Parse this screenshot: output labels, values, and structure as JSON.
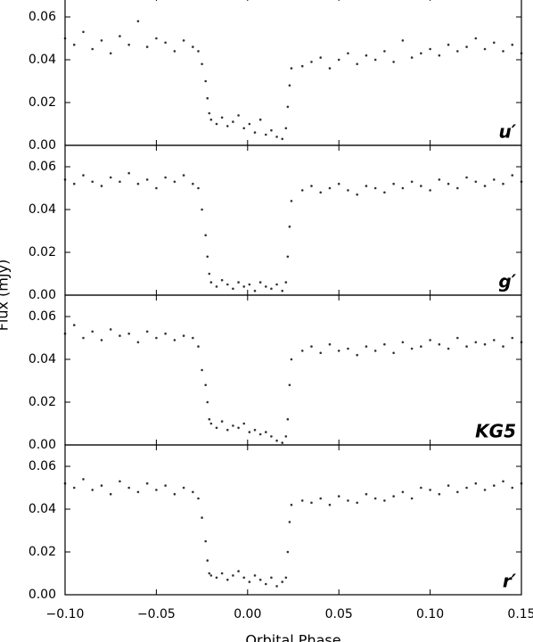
{
  "chart_data": [
    {
      "type": "scatter",
      "label": "u′",
      "color": "#333333",
      "xlim": [
        -0.1,
        0.15
      ],
      "ylim": [
        0,
        0.07
      ],
      "xticks": [
        -0.1,
        -0.05,
        0,
        0.05,
        0.1,
        0.15
      ],
      "yticks": [
        {
          "value": 0,
          "label": "0.00"
        },
        {
          "value": 0.02,
          "label": "0.02"
        },
        {
          "value": 0.04,
          "label": "0.04"
        },
        {
          "value": 0.06,
          "label": "0.06"
        }
      ],
      "x": [
        -0.1,
        -0.095,
        -0.09,
        -0.085,
        -0.08,
        -0.075,
        -0.07,
        -0.065,
        -0.06,
        -0.055,
        -0.05,
        -0.045,
        -0.04,
        -0.035,
        -0.03,
        -0.027,
        -0.025,
        -0.023,
        -0.022,
        -0.021,
        -0.02,
        -0.017,
        -0.014,
        -0.011,
        -0.008,
        -0.005,
        -0.002,
        0.001,
        0.004,
        0.007,
        0.01,
        0.013,
        0.016,
        0.019,
        0.021,
        0.022,
        0.023,
        0.024,
        0.03,
        0.035,
        0.04,
        0.045,
        0.05,
        0.055,
        0.06,
        0.065,
        0.07,
        0.075,
        0.08,
        0.085,
        0.09,
        0.095,
        0.1,
        0.105,
        0.11,
        0.115,
        0.12,
        0.125,
        0.13,
        0.135,
        0.14,
        0.145,
        0.15
      ],
      "values": [
        0.05,
        0.047,
        0.053,
        0.045,
        0.049,
        0.043,
        0.051,
        0.047,
        0.058,
        0.046,
        0.05,
        0.048,
        0.044,
        0.049,
        0.046,
        0.044,
        0.038,
        0.03,
        0.022,
        0.015,
        0.012,
        0.01,
        0.013,
        0.009,
        0.011,
        0.014,
        0.008,
        0.01,
        0.006,
        0.012,
        0.005,
        0.007,
        0.004,
        0.003,
        0.008,
        0.018,
        0.028,
        0.036,
        0.037,
        0.039,
        0.041,
        0.036,
        0.04,
        0.043,
        0.038,
        0.042,
        0.04,
        0.044,
        0.039,
        0.049,
        0.041,
        0.043,
        0.045,
        0.042,
        0.047,
        0.044,
        0.046,
        0.05,
        0.045,
        0.048,
        0.044,
        0.047,
        0.043
      ]
    },
    {
      "type": "scatter",
      "label": "g′",
      "color": "#333333",
      "xlim": [
        -0.1,
        0.15
      ],
      "ylim": [
        0,
        0.07
      ],
      "xticks": [
        -0.1,
        -0.05,
        0,
        0.05,
        0.1,
        0.15
      ],
      "yticks": [
        {
          "value": 0,
          "label": "0.00"
        },
        {
          "value": 0.02,
          "label": "0.02"
        },
        {
          "value": 0.04,
          "label": "0.04"
        },
        {
          "value": 0.06,
          "label": "0.06"
        }
      ],
      "x": [
        -0.1,
        -0.095,
        -0.09,
        -0.085,
        -0.08,
        -0.075,
        -0.07,
        -0.065,
        -0.06,
        -0.055,
        -0.05,
        -0.045,
        -0.04,
        -0.035,
        -0.03,
        -0.027,
        -0.025,
        -0.023,
        -0.022,
        -0.021,
        -0.02,
        -0.017,
        -0.014,
        -0.011,
        -0.008,
        -0.005,
        -0.002,
        0.001,
        0.004,
        0.007,
        0.01,
        0.013,
        0.016,
        0.019,
        0.021,
        0.022,
        0.023,
        0.024,
        0.03,
        0.035,
        0.04,
        0.045,
        0.05,
        0.055,
        0.06,
        0.065,
        0.07,
        0.075,
        0.08,
        0.085,
        0.09,
        0.095,
        0.1,
        0.105,
        0.11,
        0.115,
        0.12,
        0.125,
        0.13,
        0.135,
        0.14,
        0.145,
        0.15
      ],
      "values": [
        0.054,
        0.052,
        0.056,
        0.053,
        0.051,
        0.055,
        0.053,
        0.057,
        0.052,
        0.054,
        0.05,
        0.055,
        0.053,
        0.056,
        0.052,
        0.05,
        0.04,
        0.028,
        0.018,
        0.01,
        0.006,
        0.004,
        0.007,
        0.005,
        0.003,
        0.006,
        0.004,
        0.005,
        0.002,
        0.006,
        0.004,
        0.003,
        0.005,
        0.002,
        0.006,
        0.018,
        0.032,
        0.044,
        0.049,
        0.051,
        0.048,
        0.05,
        0.052,
        0.049,
        0.047,
        0.051,
        0.05,
        0.048,
        0.052,
        0.05,
        0.053,
        0.051,
        0.049,
        0.054,
        0.052,
        0.05,
        0.055,
        0.053,
        0.051,
        0.054,
        0.052,
        0.056,
        0.053
      ]
    },
    {
      "type": "scatter",
      "label": "KG5",
      "color": "#333333",
      "xlim": [
        -0.1,
        0.15
      ],
      "ylim": [
        0,
        0.07
      ],
      "xticks": [
        -0.1,
        -0.05,
        0,
        0.05,
        0.1,
        0.15
      ],
      "yticks": [
        {
          "value": 0,
          "label": "0.00"
        },
        {
          "value": 0.02,
          "label": "0.02"
        },
        {
          "value": 0.04,
          "label": "0.04"
        },
        {
          "value": 0.06,
          "label": "0.06"
        }
      ],
      "x": [
        -0.1,
        -0.095,
        -0.09,
        -0.085,
        -0.08,
        -0.075,
        -0.07,
        -0.065,
        -0.06,
        -0.055,
        -0.05,
        -0.045,
        -0.04,
        -0.035,
        -0.03,
        -0.027,
        -0.025,
        -0.023,
        -0.022,
        -0.021,
        -0.02,
        -0.017,
        -0.014,
        -0.011,
        -0.008,
        -0.005,
        -0.002,
        0.001,
        0.004,
        0.007,
        0.01,
        0.013,
        0.016,
        0.019,
        0.021,
        0.022,
        0.023,
        0.024,
        0.03,
        0.035,
        0.04,
        0.045,
        0.05,
        0.055,
        0.06,
        0.065,
        0.07,
        0.075,
        0.08,
        0.085,
        0.09,
        0.095,
        0.1,
        0.105,
        0.11,
        0.115,
        0.12,
        0.125,
        0.13,
        0.135,
        0.14,
        0.145,
        0.15
      ],
      "values": [
        0.052,
        0.056,
        0.05,
        0.053,
        0.049,
        0.054,
        0.051,
        0.052,
        0.048,
        0.053,
        0.05,
        0.052,
        0.049,
        0.051,
        0.05,
        0.046,
        0.035,
        0.028,
        0.02,
        0.012,
        0.01,
        0.008,
        0.011,
        0.007,
        0.009,
        0.008,
        0.01,
        0.006,
        0.007,
        0.005,
        0.006,
        0.004,
        0.002,
        0.001,
        0.004,
        0.012,
        0.028,
        0.04,
        0.044,
        0.046,
        0.043,
        0.047,
        0.044,
        0.045,
        0.042,
        0.046,
        0.044,
        0.047,
        0.043,
        0.048,
        0.045,
        0.046,
        0.049,
        0.047,
        0.045,
        0.05,
        0.046,
        0.048,
        0.047,
        0.049,
        0.046,
        0.05,
        0.048
      ]
    },
    {
      "type": "scatter",
      "label": "r′",
      "color": "#333333",
      "xlabel": "Orbital Phase",
      "ylabel": "Flux (mJy)",
      "xlim": [
        -0.1,
        0.15
      ],
      "ylim": [
        0,
        0.07
      ],
      "xticks": [
        {
          "value": -0.1,
          "label": "−0.10"
        },
        {
          "value": -0.05,
          "label": "−0.05"
        },
        {
          "value": 0,
          "label": "0.00"
        },
        {
          "value": 0.05,
          "label": "0.05"
        },
        {
          "value": 0.1,
          "label": "0.10"
        },
        {
          "value": 0.15,
          "label": "0.15"
        }
      ],
      "yticks": [
        {
          "value": 0,
          "label": "0.00"
        },
        {
          "value": 0.02,
          "label": "0.02"
        },
        {
          "value": 0.04,
          "label": "0.04"
        },
        {
          "value": 0.06,
          "label": "0.06"
        }
      ],
      "x": [
        -0.1,
        -0.095,
        -0.09,
        -0.085,
        -0.08,
        -0.075,
        -0.07,
        -0.065,
        -0.06,
        -0.055,
        -0.05,
        -0.045,
        -0.04,
        -0.035,
        -0.03,
        -0.027,
        -0.025,
        -0.023,
        -0.022,
        -0.021,
        -0.02,
        -0.017,
        -0.014,
        -0.011,
        -0.008,
        -0.005,
        -0.002,
        0.001,
        0.004,
        0.007,
        0.01,
        0.013,
        0.016,
        0.019,
        0.021,
        0.022,
        0.023,
        0.024,
        0.03,
        0.035,
        0.04,
        0.045,
        0.05,
        0.055,
        0.06,
        0.065,
        0.07,
        0.075,
        0.08,
        0.085,
        0.09,
        0.095,
        0.1,
        0.105,
        0.11,
        0.115,
        0.12,
        0.125,
        0.13,
        0.135,
        0.14,
        0.145,
        0.15
      ],
      "values": [
        0.052,
        0.05,
        0.054,
        0.049,
        0.051,
        0.047,
        0.053,
        0.05,
        0.048,
        0.052,
        0.049,
        0.051,
        0.047,
        0.05,
        0.048,
        0.045,
        0.036,
        0.025,
        0.016,
        0.01,
        0.009,
        0.008,
        0.01,
        0.007,
        0.009,
        0.011,
        0.008,
        0.006,
        0.009,
        0.007,
        0.005,
        0.008,
        0.004,
        0.006,
        0.008,
        0.02,
        0.034,
        0.042,
        0.044,
        0.043,
        0.045,
        0.042,
        0.046,
        0.044,
        0.043,
        0.047,
        0.045,
        0.044,
        0.046,
        0.048,
        0.045,
        0.05,
        0.049,
        0.047,
        0.051,
        0.048,
        0.05,
        0.052,
        0.049,
        0.051,
        0.053,
        0.05,
        0.052
      ]
    }
  ]
}
